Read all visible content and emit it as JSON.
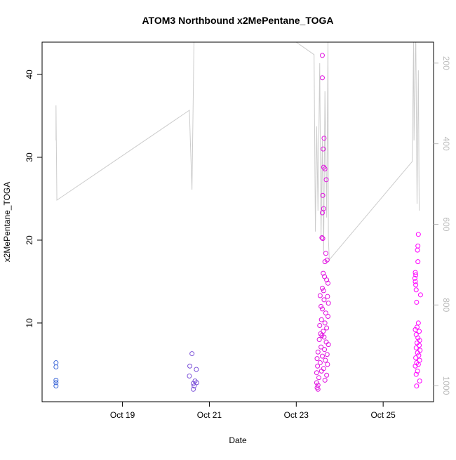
{
  "chart_data": {
    "type": "scatter",
    "title": "ATOM3 Northbound x2MePentane_TOGA",
    "xlabel": "Date",
    "ylabel": "x2MePentane_TOGA",
    "xlim": [
      17.15,
      26.16
    ],
    "xticks": [
      {
        "value": 19,
        "label": "Oct 19"
      },
      {
        "value": 21,
        "label": "Oct 21"
      },
      {
        "value": 23,
        "label": "Oct 23"
      },
      {
        "value": 25,
        "label": "Oct 25"
      }
    ],
    "ylim": [
      0.5,
      43.9
    ],
    "yticks": [
      10,
      20,
      30,
      40
    ],
    "y2lim": [
      1040,
      148
    ],
    "y2ticks": [
      200,
      400,
      600,
      800,
      1000
    ],
    "series": [
      {
        "type": "scatter",
        "color": "#3a66d8",
        "x": [
          17.47,
          17.47,
          17.47,
          17.47,
          17.47
        ],
        "values": [
          5.2,
          4.7,
          3.1,
          2.8,
          2.4
        ]
      },
      {
        "type": "scatter",
        "color": "#7a50d8",
        "x": [
          20.6,
          20.55,
          20.7,
          20.54,
          20.67,
          20.63,
          20.71,
          20.65,
          20.63
        ],
        "values": [
          6.3,
          4.8,
          4.4,
          3.6,
          3.0,
          2.7,
          2.8,
          2.4,
          2.0
        ]
      },
      {
        "type": "scatter",
        "color": "#e010e0",
        "x": [
          23.6,
          23.6,
          23.64,
          23.62,
          23.63,
          23.66,
          23.69,
          23.61,
          23.63,
          23.6,
          23.59,
          23.61,
          23.68,
          23.71,
          23.66,
          23.62,
          23.65,
          23.7,
          23.73,
          23.6,
          23.63,
          23.55,
          23.72,
          23.64,
          23.74,
          23.57,
          23.6,
          23.68,
          23.73,
          23.58,
          23.66,
          23.54,
          23.7,
          23.62,
          23.56,
          23.59,
          23.64,
          23.53,
          23.69,
          23.74,
          23.57,
          23.65,
          23.5,
          23.71,
          23.6,
          23.48,
          23.67,
          23.55,
          23.72,
          23.49,
          23.63,
          23.58,
          23.47,
          23.7,
          23.52,
          23.66,
          23.47,
          23.5,
          23.48,
          23.5
        ],
        "values": [
          42.3,
          39.6,
          32.3,
          31.0,
          28.8,
          28.6,
          27.3,
          25.4,
          23.8,
          23.3,
          20.3,
          20.2,
          18.4,
          17.6,
          17.4,
          16.0,
          15.6,
          15.2,
          14.8,
          14.2,
          13.9,
          13.3,
          13.2,
          12.8,
          12.4,
          12.0,
          11.7,
          11.2,
          10.8,
          10.4,
          10.0,
          9.7,
          9.4,
          9.0,
          8.7,
          8.5,
          8.3,
          8.0,
          7.7,
          7.4,
          7.1,
          6.8,
          6.5,
          6.2,
          6.0,
          5.7,
          5.5,
          5.2,
          5.0,
          4.8,
          4.5,
          4.2,
          4.0,
          3.7,
          3.4,
          3.1,
          2.8,
          2.5,
          2.2,
          2.0
        ]
      },
      {
        "type": "scatter",
        "color": "#ff00ff",
        "x": [
          25.81,
          25.8,
          25.79,
          25.8,
          25.74,
          25.75,
          25.73,
          25.74,
          25.75,
          25.76,
          25.86,
          25.77,
          25.81,
          25.78,
          25.74,
          25.83,
          25.76,
          25.8,
          25.84,
          25.78,
          25.83,
          25.76,
          25.85,
          25.79,
          25.82,
          25.75,
          25.84,
          25.77,
          25.81,
          25.74,
          25.79,
          25.76,
          25.84,
          25.77
        ],
        "values": [
          20.7,
          19.3,
          18.8,
          17.4,
          16.1,
          15.8,
          15.4,
          15.0,
          14.6,
          14.0,
          13.4,
          12.5,
          10.0,
          9.5,
          9.2,
          9.0,
          8.6,
          8.2,
          7.9,
          7.6,
          7.3,
          7.0,
          6.7,
          6.4,
          6.1,
          5.8,
          5.5,
          5.2,
          5.0,
          4.8,
          4.2,
          3.8,
          3.0,
          2.4
        ]
      },
      {
        "type": "line",
        "axis": "y2",
        "color": "#cccccc",
        "x": [
          17.47,
          17.47,
          17.49,
          20.54,
          20.57,
          20.6,
          20.65,
          22.96,
          23.41,
          23.44,
          23.47,
          23.5,
          23.54,
          23.57,
          23.6,
          23.63,
          23.66,
          23.7,
          23.73,
          23.74,
          23.76,
          25.67,
          25.7,
          25.71,
          25.75,
          25.78,
          25.81,
          25.83
        ],
        "values": [
          392,
          305,
          540,
          317,
          418,
          514,
          113,
          145,
          179,
          618,
          357,
          566,
          200,
          636,
          392,
          671,
          270,
          583,
          148,
          636,
          688,
          444,
          148,
          392,
          113,
          549,
          218,
          566
        ]
      }
    ]
  }
}
